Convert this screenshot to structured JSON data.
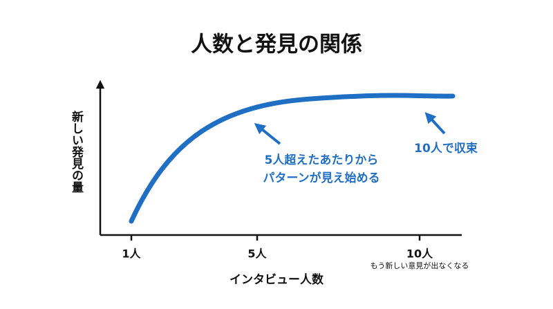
{
  "title": "人数と発見の関係",
  "y_axis_label": "新しい発見の量",
  "x_axis_label": "インタビュー人数",
  "x_labels": [
    "1人",
    "5人",
    "10人"
  ],
  "x_note": "もう新しい意見が出なくなる",
  "annotations": [
    {
      "lines": [
        "5人超えたあたりから",
        "パターンが見え始める"
      ]
    },
    {
      "lines": [
        "10人で収束"
      ]
    }
  ]
}
